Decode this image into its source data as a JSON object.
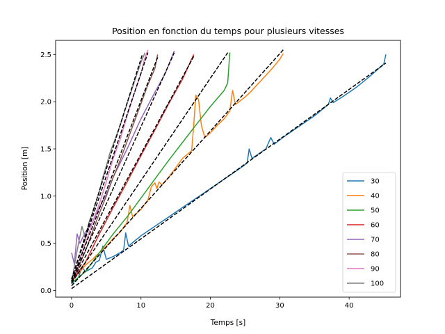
{
  "chart_data": {
    "type": "line",
    "title": "Position en fonction du temps pour plusieurs vitesses",
    "xlabel": "Temps [s]",
    "ylabel": "Position [m]",
    "xlim": [
      -2.3,
      47.4
    ],
    "ylim": [
      -0.07,
      2.65
    ],
    "xticks": [
      0,
      10,
      20,
      30,
      40
    ],
    "yticks": [
      0.0,
      0.5,
      1.0,
      1.5,
      2.0,
      2.5
    ],
    "xtick_labels": [
      "0",
      "10",
      "20",
      "30",
      "40"
    ],
    "ytick_labels": [
      "0.0",
      "0.5",
      "1.0",
      "1.5",
      "2.0",
      "2.5"
    ],
    "grid": false,
    "legend_position": "lower-right",
    "series": [
      {
        "name": "30",
        "color": "#1f77b4",
        "points": [
          [
            0,
            0.07
          ],
          [
            1,
            0.14
          ],
          [
            1.5,
            0.25
          ],
          [
            2,
            0.2
          ],
          [
            2.5,
            0.22
          ],
          [
            3,
            0.24
          ],
          [
            3.5,
            0.3
          ],
          [
            4,
            0.32
          ],
          [
            4.5,
            0.47
          ],
          [
            5,
            0.33
          ],
          [
            6,
            0.36
          ],
          [
            7,
            0.4
          ],
          [
            7.5,
            0.43
          ],
          [
            7.8,
            0.61
          ],
          [
            8.2,
            0.47
          ],
          [
            9,
            0.52
          ],
          [
            10,
            0.58
          ],
          [
            12,
            0.68
          ],
          [
            14,
            0.78
          ],
          [
            16,
            0.88
          ],
          [
            18,
            0.98
          ],
          [
            20,
            1.08
          ],
          [
            22,
            1.18
          ],
          [
            24,
            1.28
          ],
          [
            25.3,
            1.35
          ],
          [
            25.6,
            1.5
          ],
          [
            26,
            1.4
          ],
          [
            28,
            1.5
          ],
          [
            28.7,
            1.62
          ],
          [
            29.2,
            1.55
          ],
          [
            31,
            1.65
          ],
          [
            33,
            1.75
          ],
          [
            35,
            1.85
          ],
          [
            37,
            1.97
          ],
          [
            37.3,
            2.04
          ],
          [
            37.7,
            1.99
          ],
          [
            39,
            2.05
          ],
          [
            41,
            2.15
          ],
          [
            43,
            2.27
          ],
          [
            45,
            2.4
          ],
          [
            45.3,
            2.5
          ]
        ]
      },
      {
        "name": "40",
        "color": "#ff7f0e",
        "points": [
          [
            0,
            0.1
          ],
          [
            1,
            0.18
          ],
          [
            2,
            0.27
          ],
          [
            3,
            0.33
          ],
          [
            4,
            0.4
          ],
          [
            5,
            0.47
          ],
          [
            6,
            0.55
          ],
          [
            7,
            0.62
          ],
          [
            8,
            0.72
          ],
          [
            8.4,
            0.9
          ],
          [
            8.8,
            0.78
          ],
          [
            10,
            0.86
          ],
          [
            11,
            0.96
          ],
          [
            11.5,
            1.1
          ],
          [
            12,
            1.14
          ],
          [
            12.3,
            1.08
          ],
          [
            12.6,
            1.15
          ],
          [
            13,
            1.12
          ],
          [
            14,
            1.2
          ],
          [
            15,
            1.3
          ],
          [
            16,
            1.4
          ],
          [
            17.3,
            1.48
          ],
          [
            17.6,
            1.75
          ],
          [
            17.9,
            2.07
          ],
          [
            18.3,
            2.02
          ],
          [
            18.7,
            1.75
          ],
          [
            19.2,
            1.62
          ],
          [
            20,
            1.67
          ],
          [
            21,
            1.75
          ],
          [
            22,
            1.82
          ],
          [
            22.8,
            1.9
          ],
          [
            23.2,
            2.12
          ],
          [
            23.6,
            1.97
          ],
          [
            25,
            2.05
          ],
          [
            26,
            2.12
          ],
          [
            27,
            2.2
          ],
          [
            28,
            2.28
          ],
          [
            29,
            2.36
          ],
          [
            30,
            2.45
          ],
          [
            30.5,
            2.51
          ]
        ]
      },
      {
        "name": "50",
        "color": "#2ca02c",
        "points": [
          [
            0,
            0.08
          ],
          [
            2,
            0.2
          ],
          [
            4,
            0.4
          ],
          [
            6,
            0.6
          ],
          [
            8,
            0.78
          ],
          [
            10,
            0.98
          ],
          [
            12,
            1.18
          ],
          [
            14,
            1.38
          ],
          [
            16,
            1.57
          ],
          [
            18,
            1.76
          ],
          [
            20,
            1.95
          ],
          [
            22,
            2.12
          ],
          [
            22.5,
            2.2
          ],
          [
            22.8,
            2.52
          ]
        ]
      },
      {
        "name": "60",
        "color": "#d62728",
        "points": [
          [
            0,
            0.09
          ],
          [
            1,
            0.2
          ],
          [
            2,
            0.3
          ],
          [
            3,
            0.45
          ],
          [
            4,
            0.6
          ],
          [
            6,
            0.88
          ],
          [
            8,
            1.15
          ],
          [
            10,
            1.43
          ],
          [
            12,
            1.7
          ],
          [
            14,
            1.98
          ],
          [
            16,
            2.24
          ],
          [
            17.6,
            2.5
          ]
        ]
      },
      {
        "name": "70",
        "color": "#9467bd",
        "points": [
          [
            0,
            0.4
          ],
          [
            0.4,
            0.28
          ],
          [
            0.8,
            0.6
          ],
          [
            1.2,
            0.5
          ],
          [
            2,
            0.62
          ],
          [
            3,
            0.72
          ],
          [
            4,
            0.88
          ],
          [
            5,
            1.02
          ],
          [
            6,
            1.2
          ],
          [
            8,
            1.5
          ],
          [
            10,
            1.82
          ],
          [
            12,
            2.1
          ],
          [
            13.5,
            2.3
          ],
          [
            14.8,
            2.54
          ]
        ]
      },
      {
        "name": "80",
        "color": "#8c564b",
        "points": [
          [
            0,
            0.08
          ],
          [
            1,
            0.25
          ],
          [
            2,
            0.42
          ],
          [
            3,
            0.62
          ],
          [
            4,
            0.82
          ],
          [
            5,
            1.0
          ],
          [
            6,
            1.2
          ],
          [
            7,
            1.38
          ],
          [
            8,
            1.58
          ],
          [
            9,
            1.78
          ],
          [
            10,
            1.98
          ],
          [
            11,
            2.18
          ],
          [
            12,
            2.35
          ],
          [
            12.4,
            2.5
          ]
        ]
      },
      {
        "name": "90",
        "color": "#e377c2",
        "points": [
          [
            0,
            0.08
          ],
          [
            1,
            0.3
          ],
          [
            2,
            0.5
          ],
          [
            3,
            0.72
          ],
          [
            4,
            0.92
          ],
          [
            5,
            1.15
          ],
          [
            6,
            1.4
          ],
          [
            7,
            1.6
          ],
          [
            8,
            1.85
          ],
          [
            9,
            2.08
          ],
          [
            10,
            2.3
          ],
          [
            10.5,
            2.45
          ],
          [
            11,
            2.55
          ]
        ]
      },
      {
        "name": "100",
        "color": "#7f7f7f",
        "points": [
          [
            0,
            0.08
          ],
          [
            0.5,
            0.3
          ],
          [
            1,
            0.5
          ],
          [
            1.5,
            0.68
          ],
          [
            2,
            0.55
          ],
          [
            2.5,
            0.72
          ],
          [
            3,
            0.82
          ],
          [
            4,
            1.05
          ],
          [
            4.5,
            1.2
          ],
          [
            5,
            1.32
          ],
          [
            5.5,
            1.45
          ],
          [
            6,
            1.55
          ],
          [
            7,
            1.75
          ],
          [
            8,
            1.98
          ],
          [
            9,
            2.2
          ],
          [
            10,
            2.42
          ],
          [
            10.6,
            2.52
          ]
        ]
      }
    ],
    "fit_lines": [
      {
        "color": "#000000",
        "x": [
          0,
          45.3
        ],
        "y": [
          0.02,
          2.41
        ]
      },
      {
        "color": "#000000",
        "x": [
          0,
          30.5
        ],
        "y": [
          0.05,
          2.55
        ]
      },
      {
        "color": "#000000",
        "x": [
          0,
          22.5
        ],
        "y": [
          0.08,
          2.52
        ]
      },
      {
        "color": "#000000",
        "x": [
          0,
          17.6
        ],
        "y": [
          0.09,
          2.48
        ]
      },
      {
        "color": "#000000",
        "x": [
          0,
          14.8
        ],
        "y": [
          0.1,
          2.52
        ]
      },
      {
        "color": "#000000",
        "x": [
          0,
          12.4
        ],
        "y": [
          0.1,
          2.47
        ]
      },
      {
        "color": "#000000",
        "x": [
          0,
          11.0
        ],
        "y": [
          0.12,
          2.52
        ]
      },
      {
        "color": "#000000",
        "x": [
          0,
          10.2
        ],
        "y": [
          0.12,
          2.5
        ]
      }
    ]
  }
}
